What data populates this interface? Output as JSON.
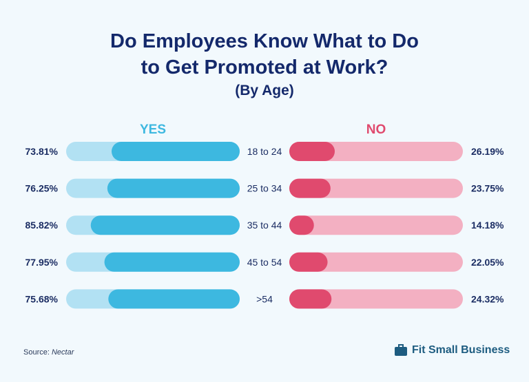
{
  "chart_data": {
    "type": "bar",
    "title": "Do Employees Know What to Do to Get Promoted at Work?",
    "title_lines": [
      "Do Employees Know What to Do",
      "to Get Promoted at Work?"
    ],
    "subtitle": "(By Age)",
    "categories": [
      "18 to 24",
      "25 to 34",
      "35 to 44",
      "45 to 54",
      ">54"
    ],
    "series": [
      {
        "name": "YES",
        "values": [
          73.81,
          76.25,
          85.82,
          77.95,
          75.68
        ],
        "color": "#3db8e0",
        "track_color": "#b2e1f3"
      },
      {
        "name": "NO",
        "values": [
          26.19,
          23.75,
          14.18,
          22.05,
          24.32
        ],
        "color": "#e04a6e",
        "track_color": "#f3b0c2"
      }
    ],
    "value_labels": {
      "yes": [
        "73.81%",
        "76.25%",
        "85.82%",
        "77.95%",
        "75.68%"
      ],
      "no": [
        "26.19%",
        "23.75%",
        "14.18%",
        "22.05%",
        "24.32%"
      ]
    },
    "ylim": [
      0,
      100
    ]
  },
  "footer": {
    "source_prefix": "Source: ",
    "source_name": "Nectar",
    "brand": "Fit Small Business",
    "brand_icon": "briefcase-icon",
    "brand_color": "#1d5c80"
  }
}
